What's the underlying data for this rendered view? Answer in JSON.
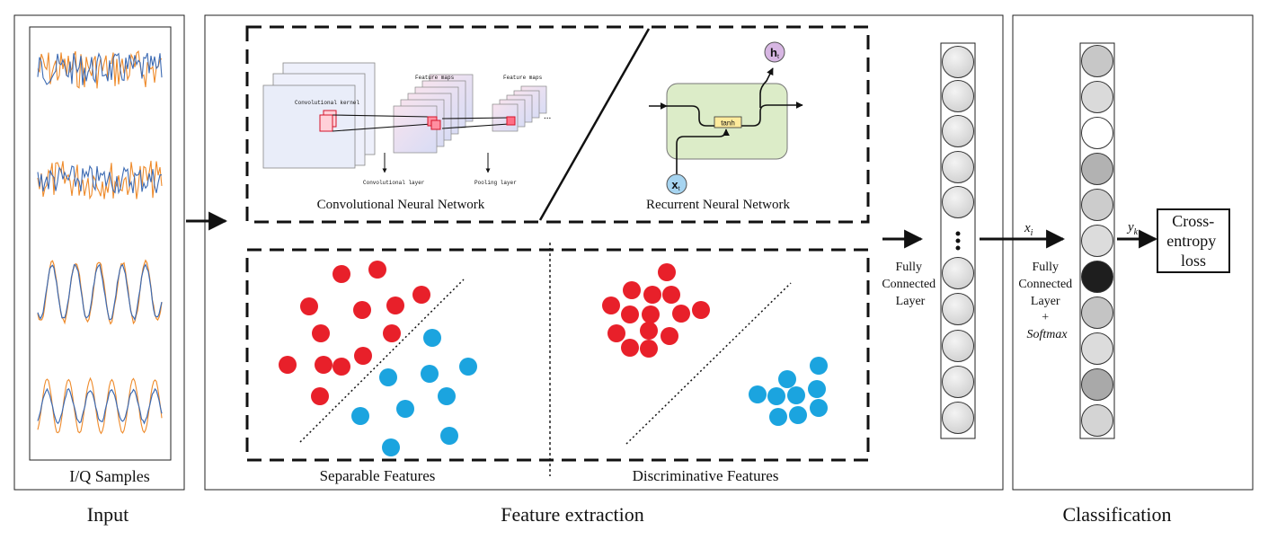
{
  "sections": {
    "input": "Input",
    "feature_extraction": "Feature extraction",
    "classification": "Classification"
  },
  "input_panel": {
    "caption": "I/Q Samples"
  },
  "cnn": {
    "caption": "Convolutional Neural Network",
    "kernel_label": "Convolutional kernel",
    "feature_maps_label_1": "Feature maps",
    "feature_maps_label_2": "Feature maps",
    "conv_layer_label": "Convolutional layer",
    "pooling_layer_label": "Pooling layer",
    "ellipsis": "..."
  },
  "rnn": {
    "caption": "Recurrent Neural Network",
    "output_label": "h",
    "output_sub": "t",
    "input_label": "x",
    "input_sub": "t",
    "activation": "tanh"
  },
  "features": {
    "separable_caption": "Separable Features",
    "discriminative_caption": "Discriminative Features"
  },
  "fc_layer": {
    "line1": "Fully",
    "line2": "Connected",
    "line3": "Layer"
  },
  "softmax_layer": {
    "line1": "Fully",
    "line2": "Connected",
    "line3": "Layer",
    "plus": "+",
    "line5": "Softmax"
  },
  "arrows": {
    "x_label": "x",
    "x_sub": "i",
    "y_label": "y",
    "y_sub": "k"
  },
  "loss": {
    "line1": "Cross-",
    "line2": "entropy",
    "line3": "loss"
  },
  "colors": {
    "red_class": "#e8202a",
    "blue_class": "#1ba4df",
    "iq_blue": "#3d6bb3",
    "iq_orange": "#ee8a2a",
    "rnn_cell": "#dcecc8",
    "neuron_gray": "#dcdcdc"
  }
}
